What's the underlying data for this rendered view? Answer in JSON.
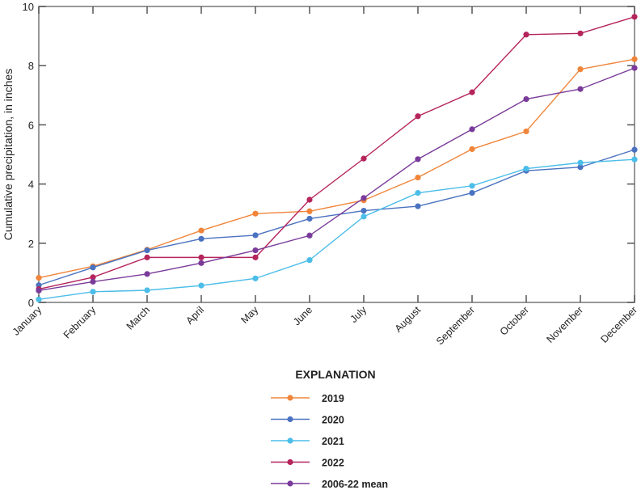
{
  "chart_data": {
    "type": "line",
    "title": "",
    "xlabel": "",
    "ylabel": "Cumulative precipitation, in inches",
    "ylim": [
      0,
      10
    ],
    "yticks": [
      0,
      2,
      4,
      6,
      8,
      10
    ],
    "categories": [
      "January",
      "February",
      "March",
      "April",
      "May",
      "June",
      "July",
      "August",
      "September",
      "October",
      "November",
      "December"
    ],
    "legend_title": "EXPLANATION",
    "legend_position": "bottom-center",
    "series": [
      {
        "name": "2019",
        "color": "#f0853a",
        "values": [
          0.83,
          1.22,
          1.78,
          2.43,
          3.0,
          3.08,
          3.45,
          4.22,
          5.18,
          5.78,
          7.88,
          8.22
        ]
      },
      {
        "name": "2020",
        "color": "#4a72c0",
        "values": [
          0.58,
          1.18,
          1.76,
          2.15,
          2.27,
          2.83,
          3.1,
          3.25,
          3.7,
          4.45,
          4.57,
          5.16
        ]
      },
      {
        "name": "2021",
        "color": "#4bbde8",
        "values": [
          0.1,
          0.36,
          0.41,
          0.57,
          0.81,
          1.43,
          2.9,
          3.7,
          3.94,
          4.52,
          4.72,
          4.83
        ]
      },
      {
        "name": "2022",
        "color": "#b5245b",
        "values": [
          0.45,
          0.85,
          1.52,
          1.52,
          1.52,
          3.47,
          4.86,
          6.29,
          7.1,
          9.05,
          9.09,
          9.65
        ]
      },
      {
        "name": "2006-22 mean",
        "color": "#7a3b9a",
        "values": [
          0.4,
          0.7,
          0.96,
          1.33,
          1.76,
          2.26,
          3.53,
          4.84,
          5.85,
          6.87,
          7.21,
          7.92
        ]
      }
    ]
  }
}
